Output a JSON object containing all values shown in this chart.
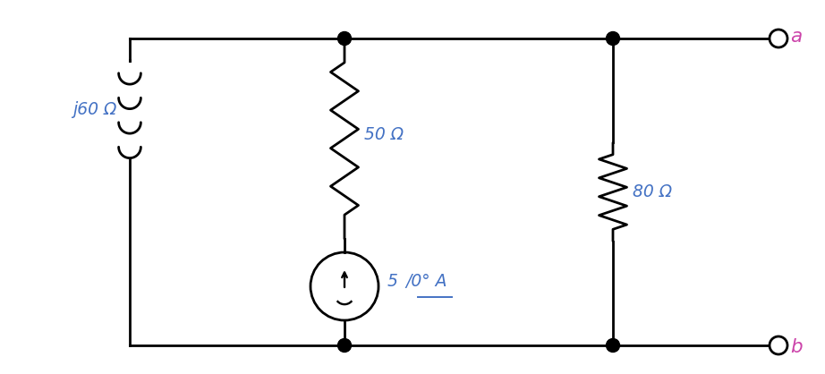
{
  "bg_color": "#ffffff",
  "line_color": "#000000",
  "label_color_blue": "#4472c4",
  "label_color_pink": "#cc44aa",
  "inductor_label": "j60 Ω",
  "resistor50_label": "50 Ω",
  "resistor80_label": "80 Ω",
  "terminal_a": "a",
  "terminal_b": "b",
  "fig_width": 9.22,
  "fig_height": 4.18,
  "dpi": 100
}
